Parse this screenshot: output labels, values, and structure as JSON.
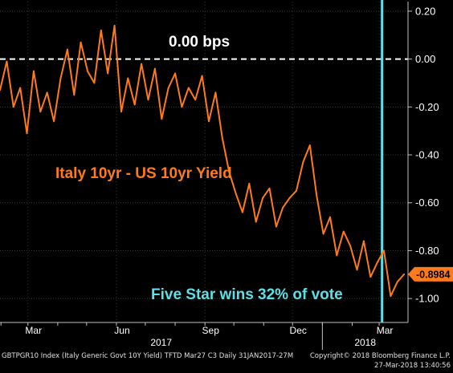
{
  "chart_data": {
    "type": "line",
    "title": "",
    "series": [
      {
        "name": "Italy 10yr - US 10yr Yield",
        "color": "#ff7a1a",
        "x": [
          "2017-01-31",
          "2017-02-07",
          "2017-02-14",
          "2017-02-21",
          "2017-02-28",
          "2017-03-07",
          "2017-03-14",
          "2017-03-21",
          "2017-03-28",
          "2017-04-04",
          "2017-04-11",
          "2017-04-18",
          "2017-04-25",
          "2017-05-02",
          "2017-05-09",
          "2017-05-16",
          "2017-05-23",
          "2017-05-30",
          "2017-06-06",
          "2017-06-13",
          "2017-06-20",
          "2017-06-27",
          "2017-07-04",
          "2017-07-11",
          "2017-07-18",
          "2017-07-25",
          "2017-08-01",
          "2017-08-08",
          "2017-08-15",
          "2017-08-22",
          "2017-08-29",
          "2017-09-05",
          "2017-09-12",
          "2017-09-19",
          "2017-09-26",
          "2017-10-03",
          "2017-10-10",
          "2017-10-17",
          "2017-10-24",
          "2017-10-31",
          "2017-11-07",
          "2017-11-14",
          "2017-11-21",
          "2017-11-28",
          "2017-12-05",
          "2017-12-12",
          "2017-12-19",
          "2017-12-26",
          "2018-01-02",
          "2018-01-09",
          "2018-01-16",
          "2018-01-23",
          "2018-01-30",
          "2018-02-06",
          "2018-02-13",
          "2018-02-20",
          "2018-02-27",
          "2018-03-06",
          "2018-03-13",
          "2018-03-20",
          "2018-03-27"
        ],
        "values": [
          -0.13,
          -0.01,
          -0.2,
          -0.12,
          -0.31,
          -0.05,
          -0.22,
          -0.14,
          -0.26,
          -0.08,
          0.04,
          -0.15,
          0.07,
          -0.05,
          -0.1,
          0.12,
          -0.06,
          0.14,
          -0.22,
          -0.08,
          -0.19,
          -0.02,
          -0.17,
          -0.04,
          -0.25,
          -0.12,
          -0.06,
          -0.2,
          -0.12,
          -0.17,
          -0.07,
          -0.26,
          -0.14,
          -0.33,
          -0.47,
          -0.56,
          -0.64,
          -0.52,
          -0.68,
          -0.58,
          -0.54,
          -0.7,
          -0.62,
          -0.58,
          -0.55,
          -0.43,
          -0.36,
          -0.57,
          -0.73,
          -0.66,
          -0.82,
          -0.72,
          -0.78,
          -0.88,
          -0.76,
          -0.91,
          -0.85,
          -0.8,
          -0.99,
          -0.93,
          -0.8984
        ]
      }
    ],
    "ylim": [
      -1.1,
      0.24
    ],
    "yticks": [
      0.2,
      0.0,
      -0.2,
      -0.4,
      -0.6,
      -0.8,
      -1.0
    ],
    "ytick_labels": [
      "0.20",
      "0.00",
      "-0.20",
      "-0.40",
      "-0.60",
      "-0.80",
      "-1.00"
    ],
    "x_month_ticks": [
      "Mar",
      "Jun",
      "Sep",
      "Dec",
      "Mar"
    ],
    "x_year_labels": [
      "2017",
      "2018"
    ],
    "last_value_label": "-0.8984",
    "reference_line": {
      "value": 0.0,
      "label": "0.00 bps",
      "style": "dashed",
      "color": "#ffffff"
    },
    "event_line": {
      "date": "2018-03-04",
      "label": "Five Star wins 32% of vote",
      "color": "#5ae0e6"
    },
    "series_label": "Italy 10yr - US 10yr Yield",
    "grid": true,
    "axis_side": "right"
  },
  "footer": {
    "left1": "GBTPGR10 Index (Italy Generic Govt 10Y Yield) TFTD Mar27 C3  Daily 31JAN2017-27M",
    "right1": "Copyright© 2018 Bloomberg Finance L.P.",
    "right2": "27-Mar-2018 13:40:56"
  }
}
